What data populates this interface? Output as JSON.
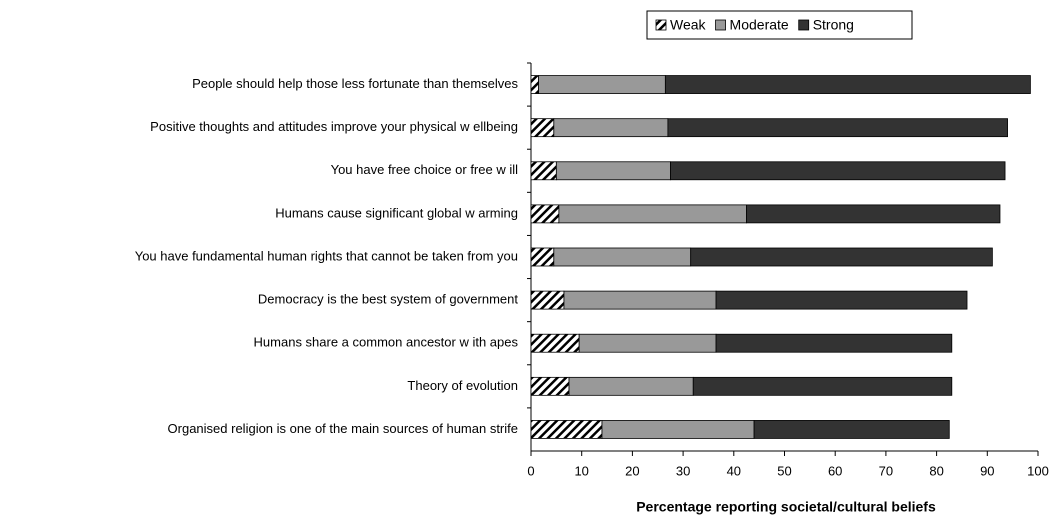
{
  "chart_data": {
    "type": "stacked_barh",
    "x_label": "Percentage reporting societal/cultural beliefs",
    "categories": [
      "People should help those less fortunate than themselves",
      "Positive thoughts and attitudes improve your physical w ellbeing",
      "You have free choice or free w ill",
      "Humans cause significant global w arming",
      "You have fundamental human rights that cannot be taken from you",
      "Democracy is the best system of government",
      "Humans share a common ancestor w ith apes",
      "Theory of evolution",
      "Organised religion is one of the main sources of human strife"
    ],
    "series": [
      {
        "name": "Weak",
        "color": "#ffffff",
        "pattern": "diagonal",
        "values": [
          1.5,
          4.5,
          5,
          5.5,
          4.5,
          6.5,
          9.5,
          7.5,
          14
        ]
      },
      {
        "name": "Moderate",
        "color": "#999999",
        "values": [
          25,
          22.5,
          22.5,
          37,
          27,
          30,
          27,
          24.5,
          30
        ]
      },
      {
        "name": "Strong",
        "color": "#333333",
        "values": [
          72,
          67,
          66,
          50,
          59.5,
          49.5,
          46.5,
          51,
          38.5
        ]
      }
    ],
    "xlim": [
      0,
      100
    ],
    "xticks": [
      0,
      10,
      20,
      30,
      40,
      50,
      60,
      70,
      80,
      90,
      100
    ],
    "legend": "top"
  }
}
